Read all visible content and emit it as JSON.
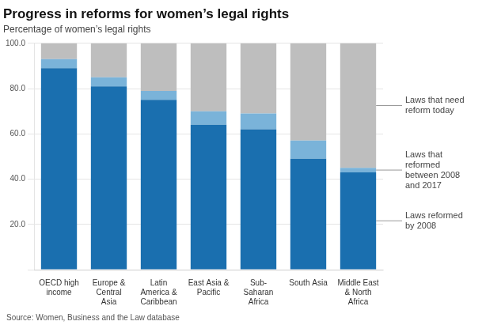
{
  "chart_data": {
    "type": "bar",
    "title": "Progress in reforms for women’s legal rights",
    "subtitle": "Percentage of women’s legal rights",
    "source": "Source: Women, Business and the Law database",
    "categories": [
      "OECD high\nincome",
      "Europe &\nCentral\nAsia",
      "Latin\nAmerica &\nCaribbean",
      "East Asia &\nPacific",
      "Sub-\nSaharan\nAfrica",
      "South Asia",
      "Middle East\n& North\nAfrica"
    ],
    "series": [
      {
        "name": "Laws reformed\nby 2008",
        "color": "#1a6faf",
        "values": [
          89,
          81,
          75,
          64,
          62,
          49,
          43
        ]
      },
      {
        "name": "Laws that\nreformed\nbetween 2008\nand 2017",
        "color": "#7ab3d9",
        "values": [
          4,
          4,
          4,
          6,
          7,
          8,
          2
        ]
      },
      {
        "name": "Laws that need\nreform today",
        "color": "#bebebe",
        "values": [
          7,
          15,
          21,
          30,
          31,
          43,
          55
        ]
      }
    ],
    "stacked": true,
    "ylim": [
      0,
      100
    ],
    "yticks": [
      {
        "value": 0,
        "label": ""
      },
      {
        "value": 20,
        "label": "20.0"
      },
      {
        "value": 40,
        "label": "40.0"
      },
      {
        "value": 60,
        "label": "60.0"
      },
      {
        "value": 80,
        "label": "80.0"
      },
      {
        "value": 100,
        "label": "100.0"
      }
    ],
    "grid": true
  }
}
